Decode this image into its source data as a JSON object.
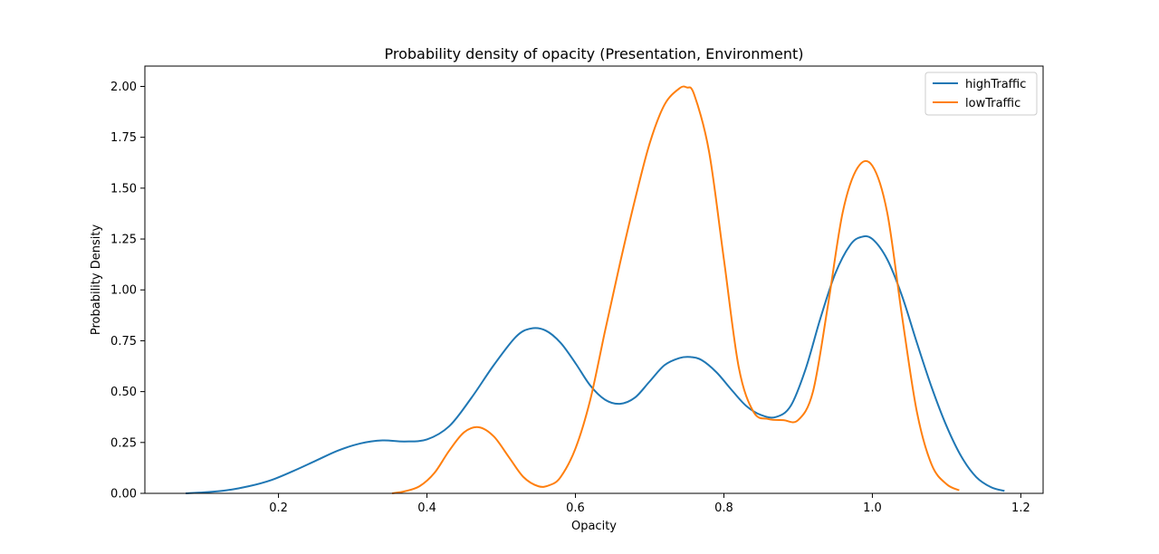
{
  "chart_data": {
    "type": "line",
    "title": "Probability density of opacity (Presentation, Environment)",
    "xlabel": "Opacity",
    "ylabel": "Probability Density",
    "xlim": [
      0.02,
      1.23
    ],
    "ylim": [
      0,
      2.1
    ],
    "xticks": [
      0.2,
      0.4,
      0.6,
      0.8,
      1.0,
      1.2
    ],
    "xtick_labels": [
      "0.2",
      "0.4",
      "0.6",
      "0.8",
      "1.0",
      "1.2"
    ],
    "yticks": [
      0,
      0.25,
      0.5,
      0.75,
      1.0,
      1.25,
      1.5,
      1.75,
      2.0
    ],
    "ytick_labels": [
      "0.00",
      "0.25",
      "0.50",
      "0.75",
      "1.00",
      "1.25",
      "1.50",
      "1.75",
      "2.00"
    ],
    "grid": false,
    "legend": "top-right",
    "series": [
      {
        "name": "highTraffic",
        "color": "#1f77b4",
        "x": [
          0.075,
          0.1,
          0.13,
          0.16,
          0.19,
          0.22,
          0.25,
          0.28,
          0.31,
          0.34,
          0.37,
          0.4,
          0.43,
          0.46,
          0.49,
          0.52,
          0.54,
          0.56,
          0.58,
          0.6,
          0.62,
          0.64,
          0.66,
          0.68,
          0.7,
          0.72,
          0.74,
          0.755,
          0.77,
          0.79,
          0.81,
          0.83,
          0.85,
          0.87,
          0.89,
          0.91,
          0.93,
          0.95,
          0.97,
          0.985,
          1.0,
          1.02,
          1.04,
          1.06,
          1.08,
          1.1,
          1.12,
          1.14,
          1.16,
          1.178
        ],
        "values": [
          0.0,
          0.005,
          0.015,
          0.035,
          0.065,
          0.11,
          0.16,
          0.21,
          0.245,
          0.26,
          0.255,
          0.265,
          0.33,
          0.47,
          0.63,
          0.77,
          0.81,
          0.8,
          0.74,
          0.64,
          0.53,
          0.46,
          0.44,
          0.47,
          0.55,
          0.63,
          0.665,
          0.67,
          0.655,
          0.595,
          0.51,
          0.43,
          0.385,
          0.375,
          0.43,
          0.61,
          0.86,
          1.08,
          1.22,
          1.26,
          1.25,
          1.15,
          0.97,
          0.74,
          0.52,
          0.33,
          0.18,
          0.08,
          0.03,
          0.012
        ]
      },
      {
        "name": "lowTraffic",
        "color": "#ff7f0e",
        "x": [
          0.353,
          0.37,
          0.39,
          0.41,
          0.43,
          0.45,
          0.47,
          0.49,
          0.51,
          0.53,
          0.55,
          0.565,
          0.58,
          0.6,
          0.62,
          0.64,
          0.66,
          0.68,
          0.7,
          0.72,
          0.74,
          0.75,
          0.76,
          0.78,
          0.8,
          0.82,
          0.84,
          0.86,
          0.88,
          0.9,
          0.92,
          0.94,
          0.96,
          0.98,
          1.0,
          1.02,
          1.04,
          1.06,
          1.08,
          1.1,
          1.117
        ],
        "values": [
          0.0,
          0.01,
          0.035,
          0.1,
          0.21,
          0.3,
          0.325,
          0.28,
          0.18,
          0.08,
          0.035,
          0.04,
          0.08,
          0.22,
          0.46,
          0.8,
          1.13,
          1.44,
          1.72,
          1.91,
          1.99,
          1.995,
          1.96,
          1.68,
          1.15,
          0.62,
          0.4,
          0.365,
          0.36,
          0.36,
          0.5,
          0.92,
          1.38,
          1.6,
          1.61,
          1.38,
          0.87,
          0.4,
          0.14,
          0.045,
          0.015
        ]
      }
    ]
  }
}
